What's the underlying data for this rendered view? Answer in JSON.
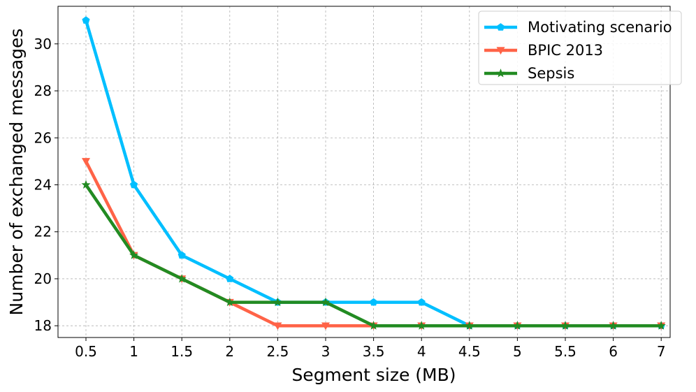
{
  "chart_data": {
    "type": "line",
    "title": "",
    "xlabel": "Segment size (MB)",
    "ylabel": "Number of exchanged messages",
    "categories": [
      "0.5",
      "1",
      "1.5",
      "2",
      "2.5",
      "3",
      "3.5",
      "4",
      "4.5",
      "5",
      "5.5",
      "6",
      "7"
    ],
    "yticks": [
      18,
      20,
      22,
      24,
      26,
      28,
      30
    ],
    "ylim": [
      17.5,
      31.6
    ],
    "grid": true,
    "legend_position": "top-right",
    "series": [
      {
        "name": "Motivating scenario",
        "color": "#00bfff",
        "marker": "pentagon",
        "values": [
          31,
          24,
          21,
          20,
          19,
          19,
          19,
          19,
          18,
          18,
          18,
          18,
          18
        ]
      },
      {
        "name": "BPIC 2013",
        "color": "#ff6347",
        "marker": "triangle-down",
        "values": [
          25,
          21,
          20,
          19,
          18,
          18,
          18,
          18,
          18,
          18,
          18,
          18,
          18
        ]
      },
      {
        "name": "Sepsis",
        "color": "#228b22",
        "marker": "star",
        "values": [
          24,
          21,
          20,
          19,
          19,
          19,
          18,
          18,
          18,
          18,
          18,
          18,
          18
        ]
      }
    ]
  }
}
